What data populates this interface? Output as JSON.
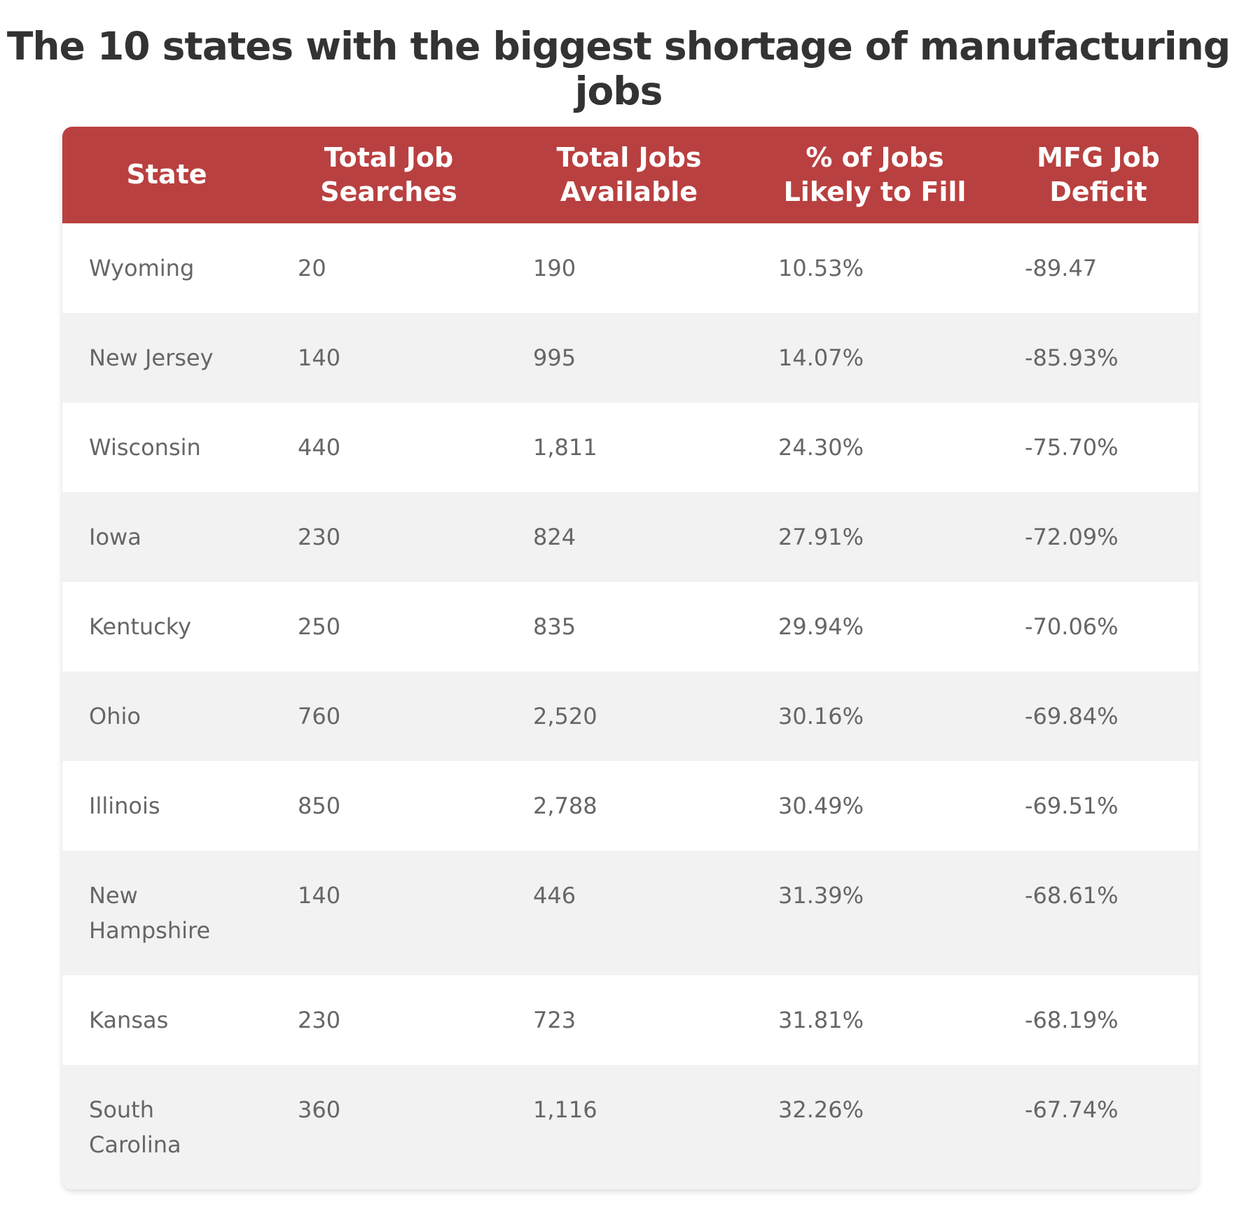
{
  "title": "The 10 states with the biggest shortage of manufacturing jobs",
  "table": {
    "headers": [
      "State",
      "Total Job Searches",
      "Total Jobs Available",
      "% of Jobs Likely to Fill",
      "MFG Job Deficit"
    ],
    "rows": [
      [
        "Wyoming",
        "20",
        "190",
        "10.53%",
        "-89.47"
      ],
      [
        "New Jersey",
        "140",
        "995",
        "14.07%",
        "-85.93%"
      ],
      [
        "Wisconsin",
        "440",
        "1,811",
        "24.30%",
        "-75.70%"
      ],
      [
        "Iowa",
        "230",
        "824",
        "27.91%",
        "-72.09%"
      ],
      [
        "Kentucky",
        "250",
        "835",
        "29.94%",
        "-70.06%"
      ],
      [
        "Ohio",
        "760",
        "2,520",
        "30.16%",
        "-69.84%"
      ],
      [
        "Illinois",
        "850",
        "2,788",
        "30.49%",
        "-69.51%"
      ],
      [
        "New Hampshire",
        "140",
        "446",
        "31.39%",
        "-68.61%"
      ],
      [
        "Kansas",
        "230",
        "723",
        "31.81%",
        "-68.19%"
      ],
      [
        "South Carolina",
        "360",
        "1,116",
        "32.26%",
        "-67.74%"
      ]
    ]
  }
}
